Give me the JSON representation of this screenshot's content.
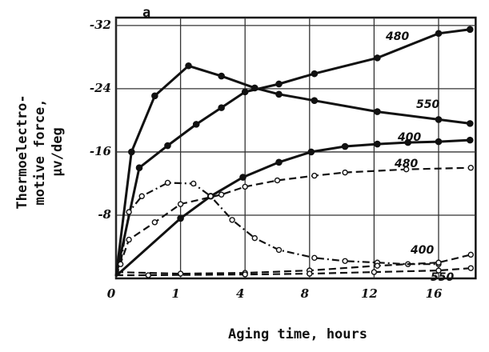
{
  "chart_data": {
    "type": "line",
    "panel_label": "a",
    "ylabel_lines": [
      "Thermoelectro-",
      "motive force,",
      "μv/deg"
    ],
    "xlabel": "Aging time, hours",
    "xlim": [
      0,
      18.3
    ],
    "xticks": [
      0,
      1,
      4,
      8,
      12,
      16
    ],
    "ylim": [
      0,
      -33
    ],
    "yticks": [
      -32,
      -24,
      -16,
      -8
    ],
    "grid": true,
    "series": [
      {
        "name": "480",
        "color": "#111111",
        "style": "solid",
        "marker": "filled",
        "x": [
          0,
          0.36,
          0.8,
          1.73,
          2.9,
          4,
          6.1,
          8.3,
          12.2,
          16,
          17.95
        ],
        "values": [
          -0.3,
          -14,
          -16.8,
          -19.5,
          -21.6,
          -23.6,
          -24.6,
          -25.9,
          -27.9,
          -31,
          -31.5
        ]
      },
      {
        "name": "550",
        "color": "#111111",
        "style": "solid",
        "marker": "filled",
        "x": [
          0,
          0.24,
          0.6,
          1.37,
          2.9,
          4.6,
          6.1,
          8.3,
          12.2,
          16,
          17.95
        ],
        "values": [
          -0.3,
          -16,
          -23.1,
          -26.9,
          -25.6,
          -24.1,
          -23.3,
          -22.5,
          -21.1,
          -20.1,
          -19.6
        ]
      },
      {
        "name": "400",
        "color": "#111111",
        "style": "solid",
        "marker": "filled",
        "x": [
          0,
          1,
          2.4,
          3.9,
          6.1,
          8.1,
          10.2,
          12.2,
          14.1,
          16,
          17.95
        ],
        "values": [
          -0.3,
          -7.6,
          -10.4,
          -12.8,
          -14.7,
          -16,
          -16.7,
          -17,
          -17.2,
          -17.3,
          -17.5
        ]
      },
      {
        "name": "480",
        "color": "#111111",
        "style": "dashed",
        "marker": "open",
        "x": [
          0,
          0.2,
          0.6,
          1,
          2.9,
          4,
          6,
          8.3,
          10.2,
          14,
          18
        ],
        "values": [
          -0.3,
          -4.9,
          -7.1,
          -9.4,
          -10.6,
          -11.6,
          -12.4,
          -13,
          -13.4,
          -13.8,
          -14
        ]
      },
      {
        "name": "550",
        "color": "#111111",
        "style": "dashdot",
        "marker": "open",
        "x": [
          0,
          0.07,
          0.2,
          0.4,
          0.8,
          1.6,
          2.4,
          3.4,
          4.6,
          6.1,
          8.3,
          10.2,
          12.2,
          14.1,
          16
        ],
        "values": [
          -0.3,
          -1.8,
          -8.4,
          -10.4,
          -12.1,
          -12,
          -10.4,
          -7.4,
          -5.1,
          -3.6,
          -2.6,
          -2.2,
          -2,
          -1.8,
          -1.8
        ]
      },
      {
        "name": "400",
        "color": "#111111",
        "style": "dashed",
        "marker": "open",
        "x": [
          0,
          1,
          4,
          8,
          12.2,
          16,
          18
        ],
        "values": [
          -0.8,
          -0.6,
          -0.7,
          -1,
          -1.6,
          -2,
          -3
        ]
      },
      {
        "name": "550",
        "color": "#111111",
        "style": "dashed",
        "marker": "open",
        "x": [
          0,
          0.5,
          4,
          8,
          12,
          16,
          18
        ],
        "values": [
          -0.4,
          -0.4,
          -0.5,
          -0.6,
          -0.8,
          -1,
          -1.3
        ]
      }
    ]
  }
}
